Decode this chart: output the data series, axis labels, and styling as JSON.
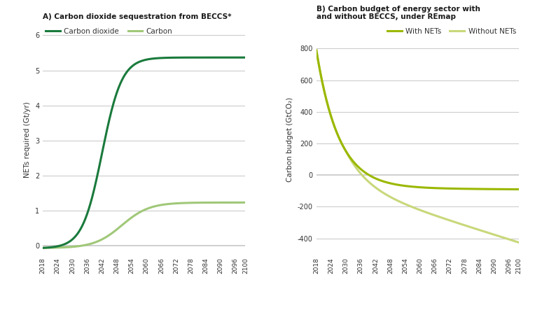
{
  "title_a": "A) Carbon dioxide sequestration from BECCS*",
  "title_b": "B) Carbon budget of energy sector with\nand without BECCS, under REmap",
  "ylabel_a": "NETs required (Gt/yr)",
  "ylabel_b": "Carbon budget (GtCO₂)",
  "legend_a": [
    "Carbon dioxide",
    "Carbon"
  ],
  "legend_b": [
    "With NETs",
    "Without NETs"
  ],
  "color_co2": "#1a7a3c",
  "color_carbon": "#a0c878",
  "color_with": "#9ab800",
  "color_without": "#c8d87a",
  "background": "#ffffff",
  "gridcolor": "#cccccc",
  "xlim_a": [
    2018,
    2100
  ],
  "xlim_b": [
    2018,
    2100
  ],
  "ylim_a": [
    -0.25,
    6.3
  ],
  "ylim_b": [
    -500,
    950
  ],
  "yticks_a": [
    0,
    1,
    2,
    3,
    4,
    5,
    6
  ],
  "yticks_b": [
    -400,
    -200,
    0,
    200,
    400,
    600,
    800
  ],
  "xticks": [
    2018,
    2024,
    2030,
    2036,
    2042,
    2048,
    2054,
    2060,
    2066,
    2072,
    2078,
    2084,
    2090,
    2096,
    2100
  ]
}
